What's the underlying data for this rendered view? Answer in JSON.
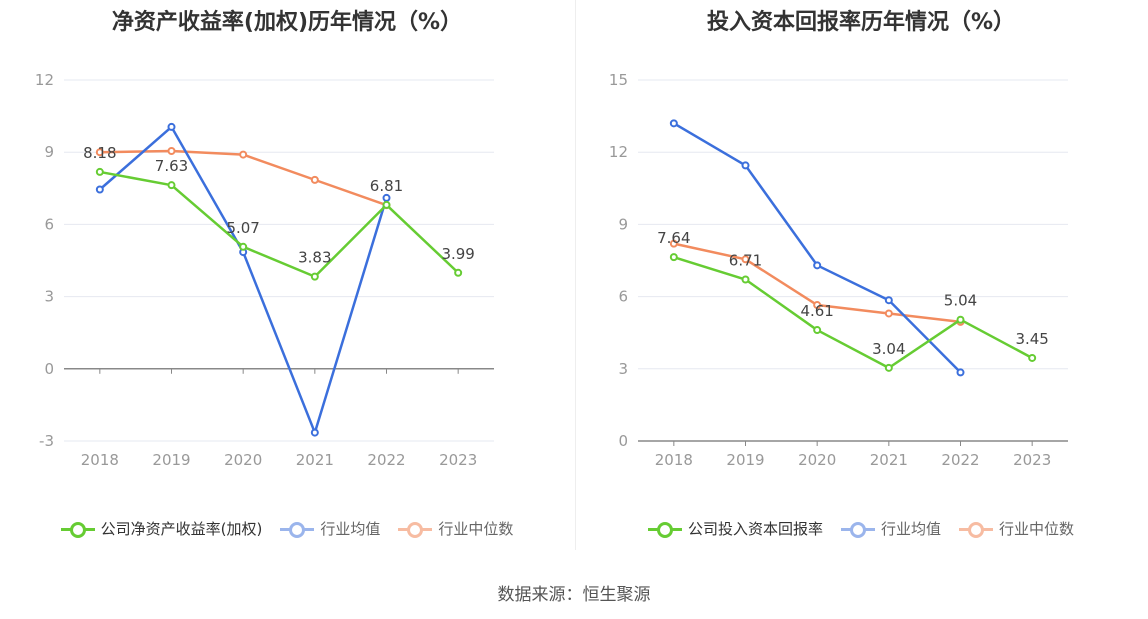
{
  "source_label": "数据来源：恒生聚源",
  "colors": {
    "company": "#66cc33",
    "average": "#3b6fdc",
    "median": "#f28b5e"
  },
  "chart_data": [
    {
      "type": "line",
      "title": "净资产收益率(加权)历年情况（%）",
      "categories": [
        "2018",
        "2019",
        "2020",
        "2021",
        "2022",
        "2023"
      ],
      "ylim": [
        -3,
        12
      ],
      "yticks": [
        -3,
        0,
        3,
        6,
        9,
        12
      ],
      "grid": true,
      "legend": "bottom",
      "series": [
        {
          "name": "公司净资产收益率(加权)",
          "key": "company",
          "values": [
            8.18,
            7.63,
            5.07,
            3.83,
            6.81,
            3.99
          ],
          "labels": [
            "8.18",
            "7.63",
            "5.07",
            "3.83",
            "6.81",
            "3.99"
          ]
        },
        {
          "name": "行业均值",
          "key": "average",
          "values": [
            7.45,
            10.05,
            4.85,
            -2.65,
            7.1,
            null
          ]
        },
        {
          "name": "行业中位数",
          "key": "median",
          "values": [
            9.0,
            9.05,
            8.9,
            7.85,
            6.8,
            null
          ]
        }
      ]
    },
    {
      "type": "line",
      "title": "投入资本回报率历年情况（%）",
      "categories": [
        "2018",
        "2019",
        "2020",
        "2021",
        "2022",
        "2023"
      ],
      "ylim": [
        0,
        15
      ],
      "yticks": [
        0,
        3,
        6,
        9,
        12,
        15
      ],
      "grid": true,
      "legend": "bottom",
      "series": [
        {
          "name": "公司投入资本回报率",
          "key": "company",
          "values": [
            7.64,
            6.71,
            4.61,
            3.04,
            5.04,
            3.45
          ],
          "labels": [
            "7.64",
            "6.71",
            "4.61",
            "3.04",
            "5.04",
            "3.45"
          ]
        },
        {
          "name": "行业均值",
          "key": "average",
          "values": [
            13.2,
            11.45,
            7.3,
            5.85,
            2.85,
            null
          ]
        },
        {
          "name": "行业中位数",
          "key": "median",
          "values": [
            8.2,
            7.55,
            5.65,
            5.3,
            4.95,
            null
          ]
        }
      ]
    }
  ]
}
